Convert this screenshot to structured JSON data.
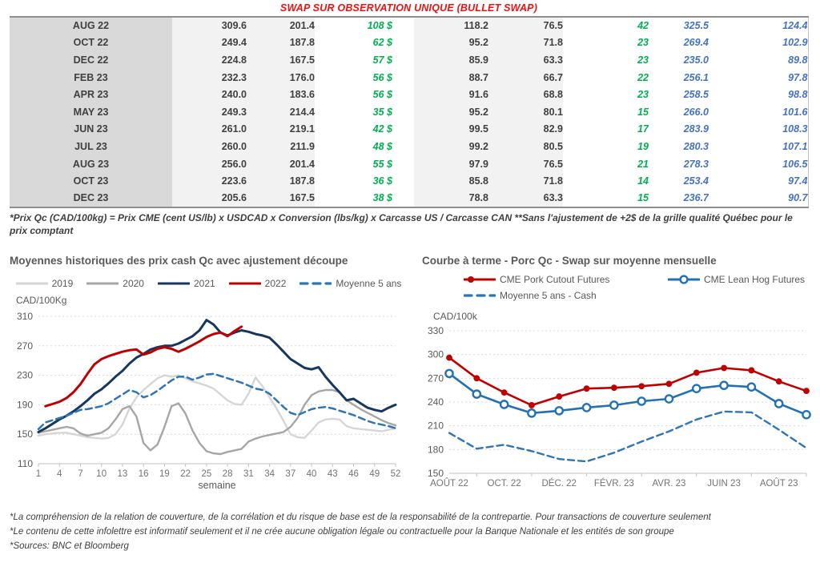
{
  "title": "SWAP SUR OBSERVATION UNIQUE (BULLET SWAP)",
  "colors": {
    "title_red": "#ee1111",
    "table_green": "#00b050",
    "table_blue": "#4472c4",
    "month_col_bg": "#d9d9d9",
    "num_col_bg": "#f2f2f2",
    "chart_text_gray": "#595959"
  },
  "table": {
    "rows": [
      {
        "month": "AUG 22",
        "values": [
          "309.6",
          "201.4",
          "108 $",
          "118.2",
          "76.5",
          "42",
          "325.5",
          "124.4"
        ]
      },
      {
        "month": "OCT 22",
        "values": [
          "249.4",
          "187.8",
          "62 $",
          "95.2",
          "71.8",
          "23",
          "269.4",
          "102.9"
        ]
      },
      {
        "month": "DEC 22",
        "values": [
          "224.8",
          "167.5",
          "57 $",
          "85.9",
          "63.3",
          "23",
          "235.0",
          "89.8"
        ]
      },
      {
        "month": "FEB 23",
        "values": [
          "232.3",
          "176.0",
          "56 $",
          "88.7",
          "66.7",
          "22",
          "256.1",
          "97.8"
        ]
      },
      {
        "month": "APR 23",
        "values": [
          "240.0",
          "183.6",
          "56 $",
          "91.6",
          "68.8",
          "23",
          "258.5",
          "98.8"
        ]
      },
      {
        "month": "MAY 23",
        "values": [
          "249.3",
          "214.4",
          "35 $",
          "95.2",
          "80.1",
          "15",
          "266.0",
          "101.6"
        ]
      },
      {
        "month": "JUN 23",
        "values": [
          "261.0",
          "219.1",
          "42 $",
          "99.5",
          "82.9",
          "17",
          "283.9",
          "108.3"
        ]
      },
      {
        "month": "JUL 23",
        "values": [
          "260.0",
          "211.9",
          "48 $",
          "99.2",
          "80.5",
          "19",
          "280.3",
          "107.1"
        ]
      },
      {
        "month": "AUG 23",
        "values": [
          "256.0",
          "201.4",
          "55 $",
          "97.9",
          "76.5",
          "21",
          "278.3",
          "106.5"
        ]
      },
      {
        "month": "OCT 23",
        "values": [
          "223.6",
          "187.8",
          "36 $",
          "85.8",
          "71.8",
          "14",
          "253.4",
          "97.4"
        ]
      },
      {
        "month": "DEC 23",
        "values": [
          "205.6",
          "167.5",
          "38 $",
          "78.8",
          "63.3",
          "15",
          "236.7",
          "90.7"
        ]
      }
    ]
  },
  "table_footnote": "*Prix Qc (CAD/100kg) = Prix CME (cent US/lb) x USDCAD x Conversion (lbs/kg) x Carcasse US / Carcasse CAN **Sans l'ajustement de +2$ de la grille qualité Québec pour le prix comptant",
  "chart_data": [
    {
      "type": "line",
      "title": "Moyennes historiques des prix cash Qc avec ajustement découpe",
      "ylabel": "CAD/100Kg",
      "xlabel": "semaine",
      "ylim": [
        110,
        310
      ],
      "yticks": [
        110,
        150,
        190,
        230,
        270,
        310
      ],
      "x_domain": [
        1,
        52
      ],
      "xticks": [
        1,
        4,
        7,
        10,
        13,
        16,
        19,
        22,
        25,
        28,
        31,
        34,
        37,
        40,
        43,
        46,
        49,
        52
      ],
      "grid": true,
      "legend_position": "top",
      "series": [
        {
          "name": "2019",
          "color": "#d6d6d6",
          "style": "solid",
          "width": 2.4,
          "marker": "none",
          "x_start": 1,
          "values": [
            148,
            150,
            151,
            152,
            152,
            150,
            148,
            146,
            145,
            144,
            145,
            150,
            163,
            185,
            200,
            210,
            218,
            226,
            230,
            228,
            230,
            226,
            222,
            219,
            216,
            212,
            204,
            196,
            191,
            190,
            205,
            227,
            215,
            200,
            185,
            168,
            150,
            146,
            145,
            155,
            166,
            170,
            171,
            170,
            161,
            158,
            157,
            156,
            155,
            154,
            156,
            158
          ]
        },
        {
          "name": "2020",
          "color": "#a6a6a6",
          "style": "solid",
          "width": 2.4,
          "marker": "none",
          "x_start": 1,
          "values": [
            152,
            154,
            156,
            158,
            160,
            158,
            151,
            148,
            150,
            152,
            158,
            170,
            184,
            188,
            174,
            138,
            128,
            136,
            160,
            188,
            192,
            178,
            155,
            138,
            127,
            124,
            123,
            126,
            128,
            130,
            140,
            144,
            147,
            149,
            151,
            153,
            160,
            172,
            190,
            203,
            208,
            210,
            210,
            207,
            196,
            190,
            184,
            179,
            174,
            169,
            165,
            162
          ]
        },
        {
          "name": "2021",
          "color": "#17375e",
          "style": "solid",
          "width": 3,
          "marker": "none",
          "x_start": 1,
          "values": [
            153,
            158,
            164,
            170,
            175,
            181,
            188,
            196,
            205,
            211,
            219,
            228,
            236,
            246,
            254,
            259,
            265,
            268,
            270,
            270,
            273,
            278,
            283,
            291,
            305,
            299,
            288,
            284,
            288,
            291,
            289,
            286,
            284,
            281,
            272,
            262,
            252,
            246,
            240,
            238,
            241,
            228,
            217,
            207,
            196,
            198,
            192,
            186,
            183,
            181,
            186,
            190
          ]
        },
        {
          "name": "2022",
          "color": "#c00000",
          "style": "solid",
          "width": 3,
          "marker": "none",
          "x_start": 2,
          "values": [
            188,
            191,
            194,
            199,
            207,
            218,
            232,
            245,
            252,
            256,
            259,
            262,
            264,
            265,
            258,
            261,
            266,
            268,
            266,
            262,
            266,
            271,
            276,
            282,
            286,
            288,
            283,
            290,
            296
          ]
        },
        {
          "name": "Moyenne 5 ans",
          "color": "#2e75b6",
          "style": "dashed",
          "width": 2.5,
          "marker": "none",
          "x_start": 1,
          "values": [
            157,
            166,
            169,
            172,
            175,
            179,
            183,
            184,
            186,
            188,
            192,
            198,
            204,
            210,
            207,
            200,
            203,
            209,
            216,
            223,
            228,
            228,
            224,
            227,
            231,
            232,
            229,
            226,
            223,
            220,
            216,
            212,
            210,
            205,
            196,
            187,
            179,
            176,
            180,
            184,
            186,
            187,
            185,
            182,
            179,
            176,
            172,
            168,
            165,
            163,
            161,
            158
          ]
        }
      ]
    },
    {
      "type": "line",
      "title": "Courbe à terme - Porc Qc - Swap sur moyenne mensuelle",
      "ylabel": "CAD/100k",
      "xlabel": "",
      "ylim": [
        150,
        330
      ],
      "yticks": [
        150,
        180,
        210,
        240,
        270,
        300,
        330
      ],
      "x_domain": [
        0,
        13
      ],
      "xticks": [
        0,
        2,
        4,
        6,
        8,
        10,
        12
      ],
      "xtick_labels": [
        "AOÛT 22",
        "OCT. 22",
        "DÉC. 22",
        "FÉVR. 23",
        "AVR. 23",
        "JUIN 23",
        "AOÛT 23"
      ],
      "xtick_marks": [
        1,
        3,
        5,
        7,
        9,
        11,
        13
      ],
      "grid": true,
      "legend_position": "top",
      "series": [
        {
          "name": "CME Pork Cutout Futures",
          "color": "#c00000",
          "style": "solid",
          "width": 2.6,
          "marker": "filled-circle",
          "x_start": 0,
          "values": [
            296,
            270,
            252,
            236,
            247,
            257,
            258,
            260,
            263,
            277,
            283,
            280,
            266,
            254
          ]
        },
        {
          "name": "CME Lean Hog Futures",
          "color": "#2271b5",
          "style": "solid",
          "width": 2.6,
          "marker": "open-circle",
          "x_start": 0,
          "values": [
            276,
            250,
            237,
            226,
            229,
            233,
            236,
            241,
            244,
            257,
            261,
            259,
            238,
            224
          ]
        },
        {
          "name": "Moyenne 5 ans - Cash",
          "color": "#2e75b6",
          "style": "dashed",
          "width": 2.4,
          "marker": "none",
          "x_start": 0,
          "values": [
            201,
            181,
            186,
            178,
            168,
            165,
            176,
            190,
            203,
            218,
            228,
            227,
            205,
            182
          ]
        }
      ]
    }
  ],
  "footer": {
    "lines": [
      "*La compréhension de la relation de couverture, de la corrélation et du risque de base est de la responsabilité de la contrepartie. Pour transactions de couverture seulement",
      "*Le contenu de cette infolettre est informatif seulement et il ne crée aucune obligation légale ou contractuelle pour la Banque Nationale et les entités de son groupe",
      "*Sources: BNC et Bloomberg"
    ]
  }
}
